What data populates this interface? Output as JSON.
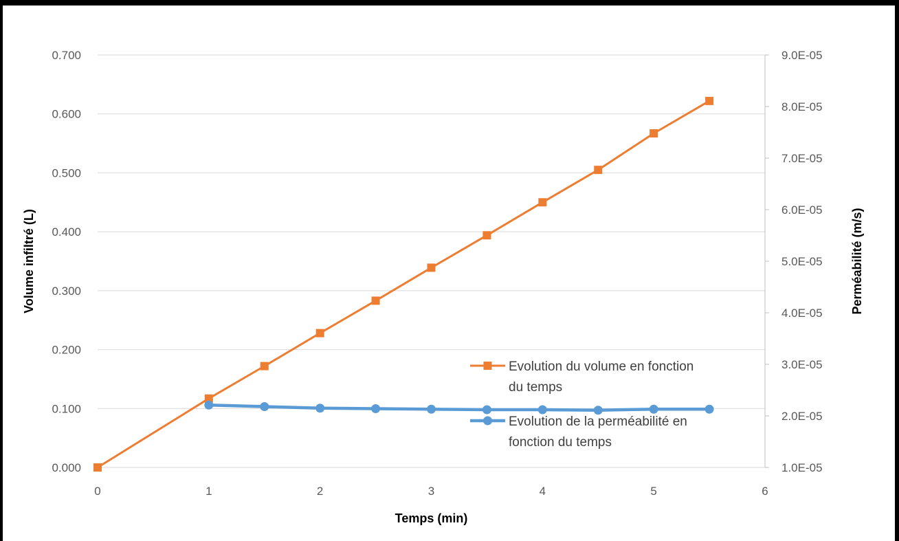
{
  "chart_data": {
    "type": "line",
    "title": "",
    "xlabel": "Temps (min)",
    "ylabel": "Volume infiltré (L)",
    "y2label": "Perméabilité (m/s)",
    "xlim": [
      0,
      6
    ],
    "ylim": [
      0,
      0.7
    ],
    "y2lim": [
      1e-05,
      9e-05
    ],
    "x_ticks": [
      "0",
      "1",
      "2",
      "3",
      "4",
      "5",
      "6"
    ],
    "y_ticks": [
      "0.000",
      "0.100",
      "0.200",
      "0.300",
      "0.400",
      "0.500",
      "0.600",
      "0.700"
    ],
    "y2_ticks": [
      "1.0E-05",
      "2.0E-05",
      "3.0E-05",
      "4.0E-05",
      "5.0E-05",
      "6.0E-05",
      "7.0E-05",
      "8.0E-05",
      "9.0E-05"
    ],
    "grid": true,
    "legend_position": "bottom-right",
    "series": [
      {
        "name": "Evolution du volume en fonction du temps",
        "legend_lines": [
          "Evolution du volume en fonction",
          "du temps"
        ],
        "axis": "left",
        "color": "#ED7D31",
        "marker": "square",
        "x": [
          0,
          1,
          1.5,
          2,
          2.5,
          3,
          3.5,
          4,
          4.5,
          5,
          5.5
        ],
        "values": [
          0.0,
          0.117,
          0.172,
          0.228,
          0.283,
          0.339,
          0.394,
          0.45,
          0.505,
          0.567,
          0.622
        ]
      },
      {
        "name": "Evolution de la perméabilité en fonction du temps",
        "legend_lines": [
          "Evolution de la perméabilité en",
          "fonction du temps"
        ],
        "axis": "right",
        "color": "#5B9BD5",
        "marker": "circle",
        "x": [
          1,
          1.5,
          2,
          2.5,
          3,
          3.5,
          4,
          4.5,
          5,
          5.5
        ],
        "values": [
          2.21e-05,
          2.18e-05,
          2.15e-05,
          2.14e-05,
          2.13e-05,
          2.12e-05,
          2.12e-05,
          2.11e-05,
          2.13e-05,
          2.13e-05
        ]
      }
    ]
  }
}
